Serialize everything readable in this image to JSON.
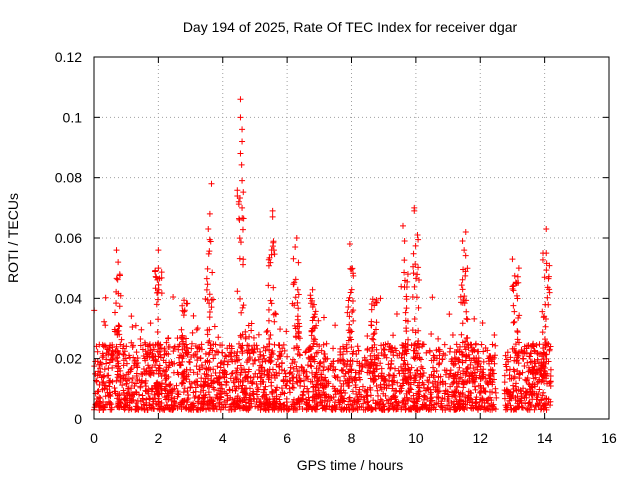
{
  "chart_data": {
    "type": "scatter",
    "title": "Day 194 of 2025, Rate Of TEC Index for receiver dgar",
    "xlabel": "GPS time / hours",
    "ylabel": "ROTI / TECUs",
    "xlim": [
      0,
      16
    ],
    "ylim": [
      0,
      0.12
    ],
    "xticks": [
      0,
      2,
      4,
      6,
      8,
      10,
      12,
      14,
      16
    ],
    "yticks": [
      0,
      0.02,
      0.04,
      0.06,
      0.08,
      0.1,
      0.12
    ],
    "xtick_labels": [
      "0",
      "2",
      "4",
      "6",
      "8",
      "10",
      "12",
      "14",
      "16"
    ],
    "ytick_labels": [
      "0",
      "0.02",
      "0.04",
      "0.06",
      "0.08",
      "0.1",
      "0.12"
    ],
    "grid": true,
    "marker": "+",
    "color": "#ff0000",
    "data_extent_hours": [
      0,
      14.2
    ],
    "gap_hours": [
      12.5,
      12.75
    ],
    "baseline_range": [
      0.003,
      0.025
    ],
    "representative_points": [
      [
        0.7,
        0.056
      ],
      [
        0.75,
        0.052
      ],
      [
        0.8,
        0.048
      ],
      [
        2.0,
        0.056
      ],
      [
        2.0,
        0.05
      ],
      [
        3.65,
        0.078
      ],
      [
        3.6,
        0.068
      ],
      [
        3.55,
        0.063
      ],
      [
        4.55,
        0.106
      ],
      [
        4.55,
        0.1
      ],
      [
        4.6,
        0.096
      ],
      [
        4.6,
        0.092
      ],
      [
        4.55,
        0.088
      ],
      [
        4.6,
        0.079
      ],
      [
        4.5,
        0.072
      ],
      [
        4.6,
        0.07
      ],
      [
        5.55,
        0.069
      ],
      [
        5.55,
        0.067
      ],
      [
        6.3,
        0.06
      ],
      [
        6.25,
        0.057
      ],
      [
        7.95,
        0.058
      ],
      [
        8.9,
        0.04
      ],
      [
        9.6,
        0.064
      ],
      [
        9.65,
        0.059
      ],
      [
        9.95,
        0.07
      ],
      [
        9.95,
        0.069
      ],
      [
        10.05,
        0.061
      ],
      [
        11.55,
        0.062
      ],
      [
        11.45,
        0.059
      ],
      [
        11.5,
        0.056
      ],
      [
        13.0,
        0.053
      ],
      [
        13.2,
        0.05
      ],
      [
        14.05,
        0.063
      ],
      [
        14.05,
        0.055
      ],
      [
        14.0,
        0.047
      ]
    ]
  }
}
